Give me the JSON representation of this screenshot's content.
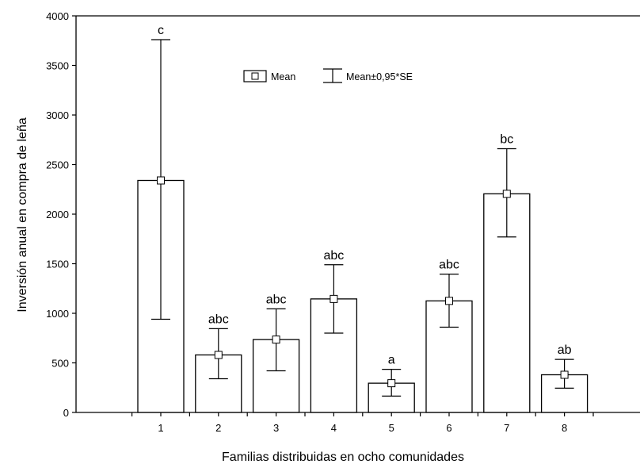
{
  "chart_data": {
    "type": "bar",
    "categories": [
      "1",
      "2",
      "3",
      "4",
      "5",
      "6",
      "7",
      "8"
    ],
    "values": [
      2340,
      580,
      735,
      1145,
      295,
      1125,
      2205,
      380
    ],
    "error_upper": [
      3760,
      845,
      1045,
      1490,
      435,
      1395,
      2660,
      535
    ],
    "error_lower": [
      940,
      340,
      420,
      800,
      165,
      860,
      1770,
      245
    ],
    "significance": [
      "c",
      "abc",
      "abc",
      "abc",
      "a",
      "abc",
      "bc",
      "ab"
    ],
    "xlabel": "Familias distribuidas en ocho comunidades",
    "ylabel": "Inversión anual en compra de leña",
    "ylim": [
      0,
      4000
    ],
    "yticks": [
      0,
      500,
      1000,
      1500,
      2000,
      2500,
      3000,
      3500,
      4000
    ],
    "legend": {
      "position": "top-center",
      "mean_label": "Mean",
      "error_label": "Mean±0,95*SE"
    },
    "grid": false
  }
}
